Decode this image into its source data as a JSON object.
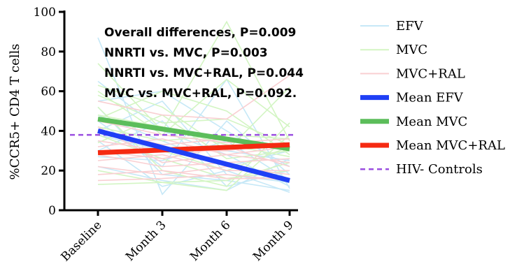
{
  "chart_data": {
    "type": "line",
    "ylabel": "%CCR5+ CD4 T cells",
    "xlabel": "",
    "categories": [
      "Baseline",
      "Month 3",
      "Month 6",
      "Month 9"
    ],
    "ylim": [
      0,
      100
    ],
    "yticks": [
      0,
      20,
      40,
      60,
      80,
      100
    ],
    "legend_position": "right",
    "annotations": [
      "Overall differences, P=0.009",
      "NNRTI vs. MVC, P=0.003",
      "NNRTI vs. MVC+RAL, P=0.044",
      "MVC vs. MVC+RAL, P=0.092."
    ],
    "colors": {
      "efv_light": "#c6e8f7",
      "mvc_light": "#d3f5c3",
      "mvcral_light": "#f9cfd2",
      "efv_mean": "#1f3ff5",
      "mvc_mean": "#5cbd5a",
      "mvcral_mean": "#f52a12",
      "controls": "#9b4fe0"
    },
    "individual_series": {
      "EFV": [
        [
          87,
          8,
          45,
          18
        ],
        [
          65,
          40,
          28,
          12
        ],
        [
          52,
          18,
          15,
          10
        ],
        [
          48,
          35,
          22,
          30
        ],
        [
          45,
          22,
          66,
          11
        ],
        [
          40,
          55,
          18,
          14
        ],
        [
          38,
          30,
          30,
          25
        ],
        [
          35,
          12,
          20,
          9
        ],
        [
          30,
          45,
          12,
          20
        ],
        [
          27,
          25,
          35,
          15
        ],
        [
          22,
          15,
          10,
          26
        ],
        [
          55,
          60,
          40,
          22
        ]
      ],
      "MVC": [
        [
          74,
          40,
          95,
          35
        ],
        [
          63,
          52,
          30,
          62
        ],
        [
          58,
          44,
          46,
          33
        ],
        [
          52,
          20,
          12,
          44
        ],
        [
          46,
          60,
          50,
          28
        ],
        [
          42,
          35,
          38,
          36
        ],
        [
          38,
          26,
          16,
          20
        ],
        [
          34,
          48,
          26,
          30
        ],
        [
          28,
          30,
          20,
          32
        ],
        [
          20,
          14,
          10,
          38
        ],
        [
          13,
          14,
          15,
          24
        ],
        [
          60,
          38,
          66,
          42
        ],
        [
          48,
          42,
          33,
          27
        ]
      ],
      "MVC+RAL": [
        [
          55,
          48,
          46,
          68
        ],
        [
          45,
          38,
          34,
          36
        ],
        [
          40,
          33,
          36,
          30
        ],
        [
          35,
          30,
          30,
          34
        ],
        [
          32,
          36,
          28,
          24
        ],
        [
          30,
          26,
          32,
          22
        ],
        [
          28,
          22,
          24,
          26
        ],
        [
          25,
          28,
          20,
          20
        ],
        [
          22,
          18,
          22,
          18
        ],
        [
          18,
          20,
          16,
          16
        ],
        [
          15,
          16,
          18,
          15
        ],
        [
          42,
          24,
          28,
          32
        ]
      ]
    },
    "series": [
      {
        "name": "Mean EFV",
        "values": [
          40,
          31,
          23,
          15
        ]
      },
      {
        "name": "Mean MVC",
        "values": [
          46,
          41,
          36,
          31
        ]
      },
      {
        "name": "Mean MVC+RAL",
        "values": [
          29,
          31,
          32,
          33
        ]
      },
      {
        "name": "HIV- Controls",
        "values": [
          38,
          38,
          38,
          38
        ]
      }
    ],
    "legend": [
      "EFV",
      "MVC",
      "MVC+RAL",
      "Mean EFV",
      "Mean MVC",
      "Mean MVC+RAL",
      "HIV- Controls"
    ]
  }
}
